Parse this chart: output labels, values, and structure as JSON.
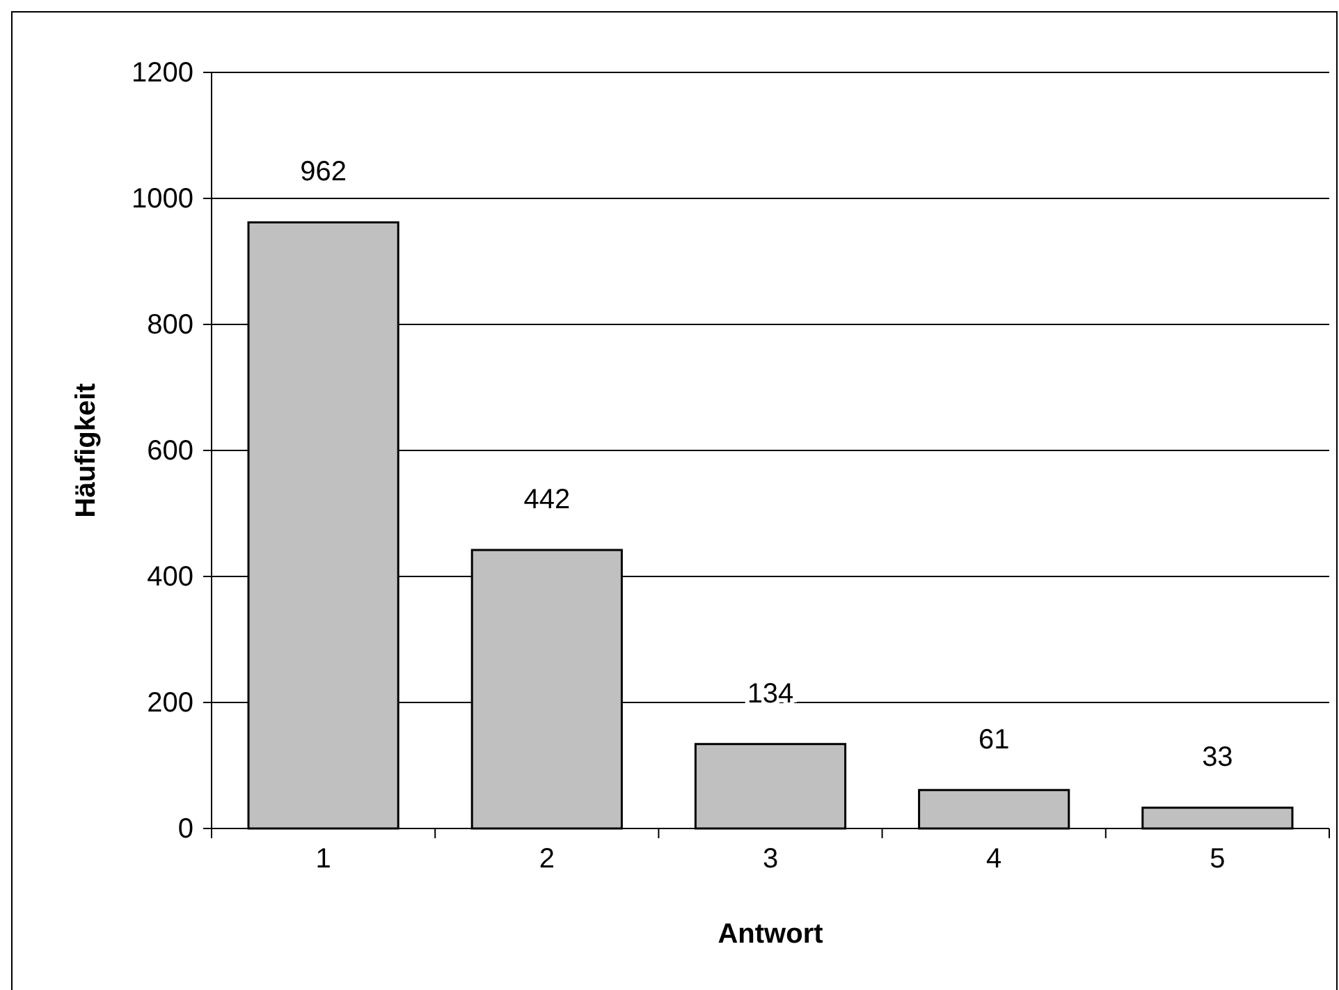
{
  "chart_data": {
    "type": "bar",
    "xlabel": "Antwort",
    "ylabel": "Häufigkeit",
    "categories": [
      "1",
      "2",
      "3",
      "4",
      "5"
    ],
    "values": [
      962,
      442,
      134,
      61,
      33
    ],
    "color": "#c0c0c0",
    "ylim": [
      0,
      1200
    ],
    "yticks": [
      0,
      200,
      400,
      600,
      800,
      1000,
      1200
    ],
    "grid": "y",
    "data_labels": true
  }
}
